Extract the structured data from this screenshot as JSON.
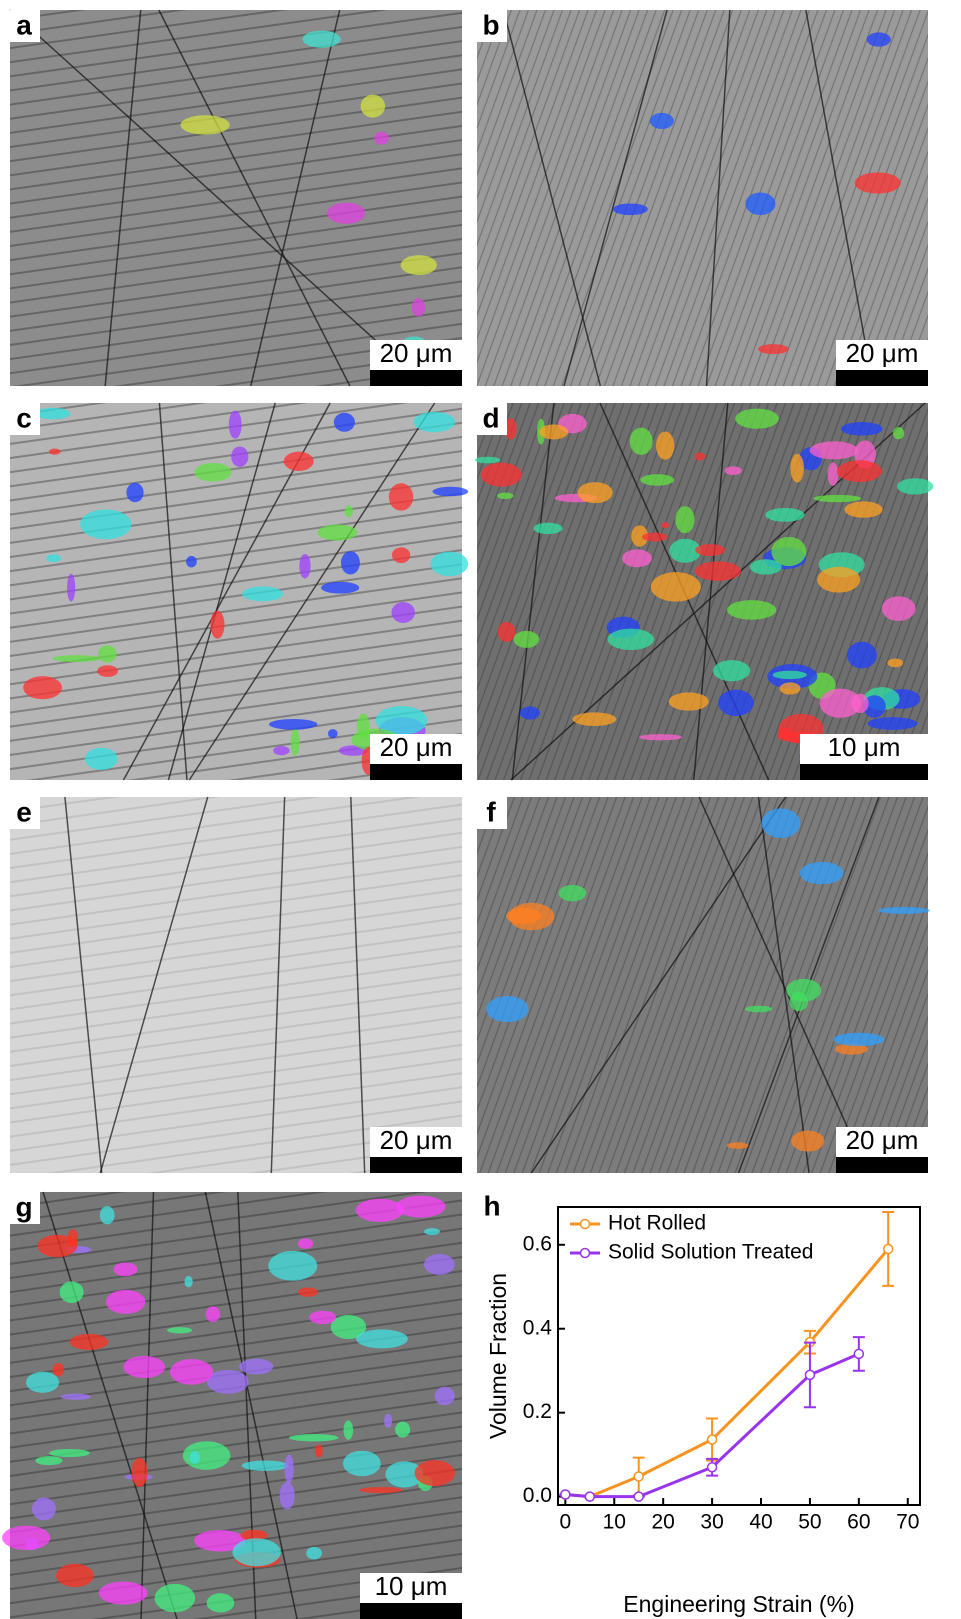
{
  "panels": [
    {
      "label": "a",
      "scale_bar": "20 μm"
    },
    {
      "label": "b",
      "scale_bar": "20 μm"
    },
    {
      "label": "c",
      "scale_bar": "20 μm"
    },
    {
      "label": "d",
      "scale_bar": "10 μm"
    },
    {
      "label": "e",
      "scale_bar": "20 μm"
    },
    {
      "label": "f",
      "scale_bar": "20 μm"
    },
    {
      "label": "g",
      "scale_bar": "10 μm"
    }
  ],
  "chart_data": {
    "type": "line",
    "panel_label": "h",
    "x_label": "Engineering Strain (%)",
    "y_label": "Volume Fraction",
    "xlim": [
      -1.5,
      72.5
    ],
    "ylim": [
      -0.02,
      0.69
    ],
    "xticks": [
      0,
      10,
      20,
      30,
      40,
      50,
      60,
      70
    ],
    "yticks": [
      {
        "value": 0,
        "label": "0.0"
      },
      0.2,
      0.4,
      0.6
    ],
    "legend": "top-left",
    "series": [
      {
        "name": "Hot Rolled",
        "color": "#f7931e",
        "x": [
          0,
          5,
          15,
          30,
          50,
          66
        ],
        "values": [
          0.005,
          0,
          0.048,
          0.136,
          0.368,
          0.59
        ],
        "errors": [
          0,
          0,
          0.045,
          0.05,
          0.027,
          0.088
        ]
      },
      {
        "name": "Solid Solution Treated",
        "color": "#9933ee",
        "x": [
          0,
          5,
          15,
          30,
          50,
          60
        ],
        "values": [
          0.005,
          0,
          0,
          0.07,
          0.29,
          0.34
        ],
        "errors": [
          0,
          0,
          0,
          0.02,
          0.077,
          0.04
        ]
      }
    ]
  }
}
